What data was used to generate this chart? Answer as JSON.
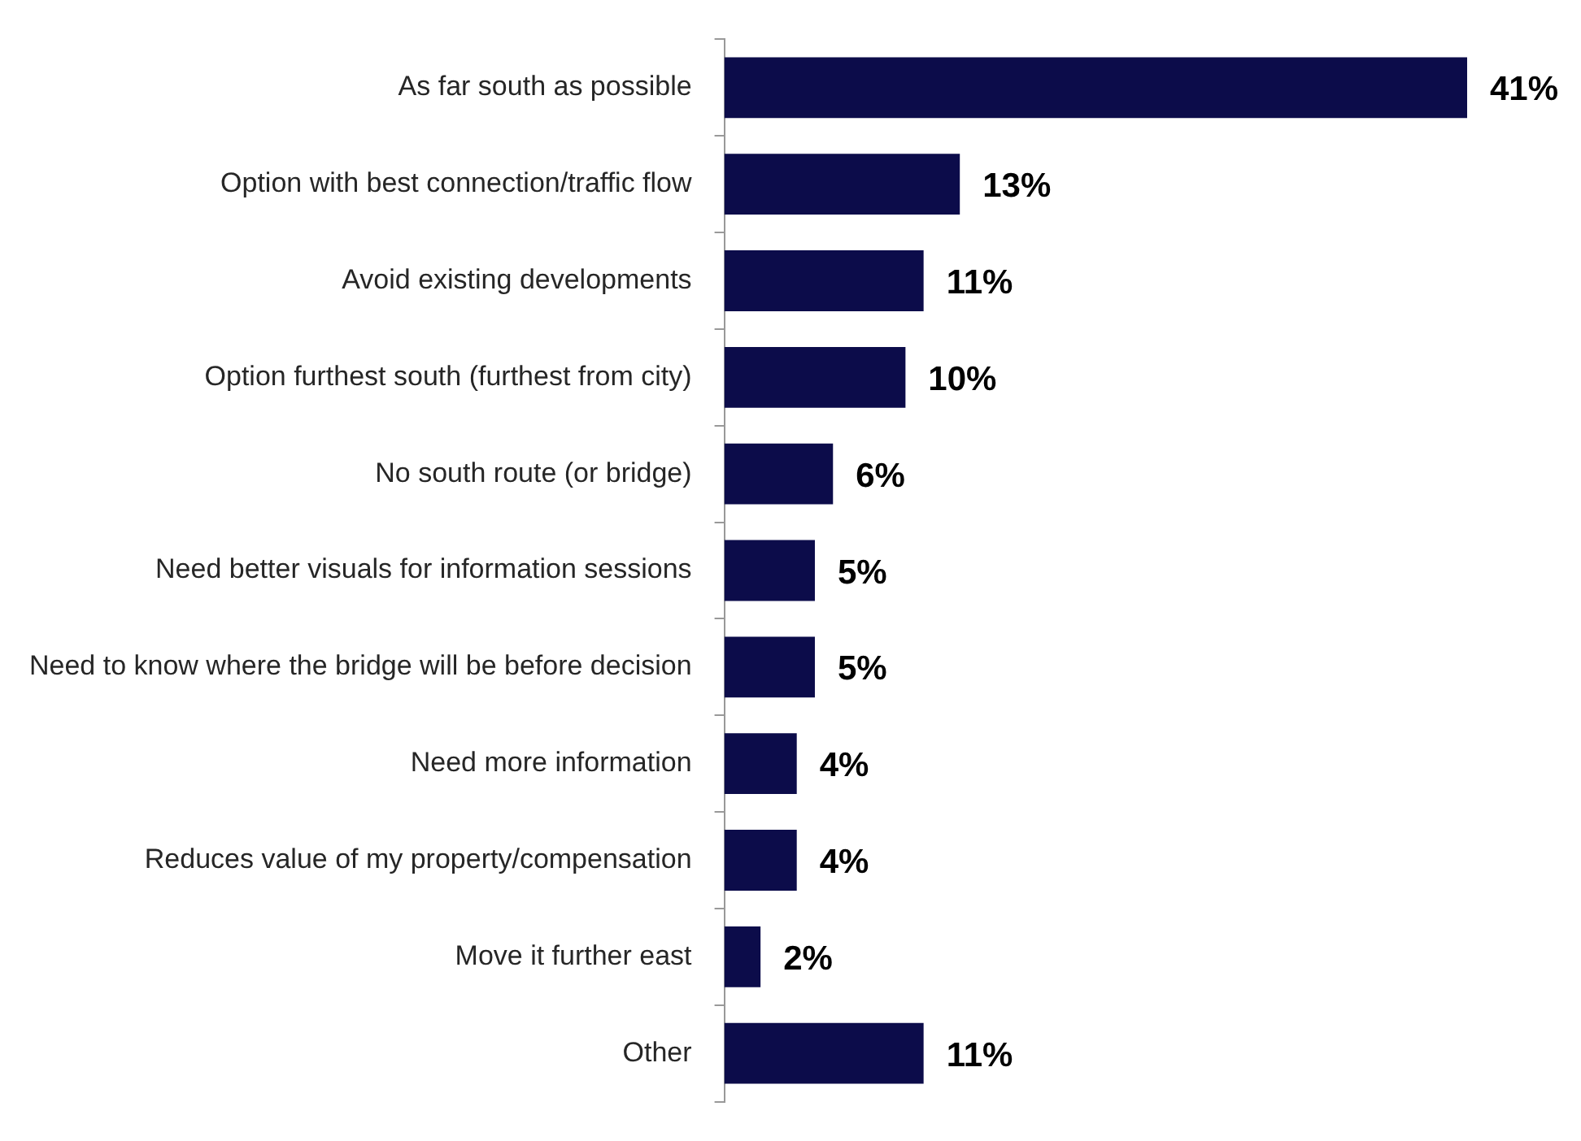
{
  "chart_data": {
    "type": "bar",
    "orientation": "horizontal",
    "legend": false,
    "categories": [
      "As far south as possible",
      "Option with best connection/traffic flow",
      "Avoid existing developments",
      "Option furthest south (furthest from city)",
      "No south route (or bridge)",
      "Need better visuals for information sessions",
      "Need to know where the bridge will be before decision",
      "Need more information",
      "Reduces value of my property/compensation",
      "Move it further east",
      "Other"
    ],
    "series": [
      {
        "color": "#0c0c4a",
        "values": [
          41,
          13,
          11,
          10,
          6,
          5,
          5,
          4,
          4,
          2,
          11
        ],
        "value_labels": [
          "41%",
          "13%",
          "11%",
          "10%",
          "6%",
          "5%",
          "5%",
          "4%",
          "4%",
          "2%",
          "11%"
        ]
      }
    ]
  }
}
